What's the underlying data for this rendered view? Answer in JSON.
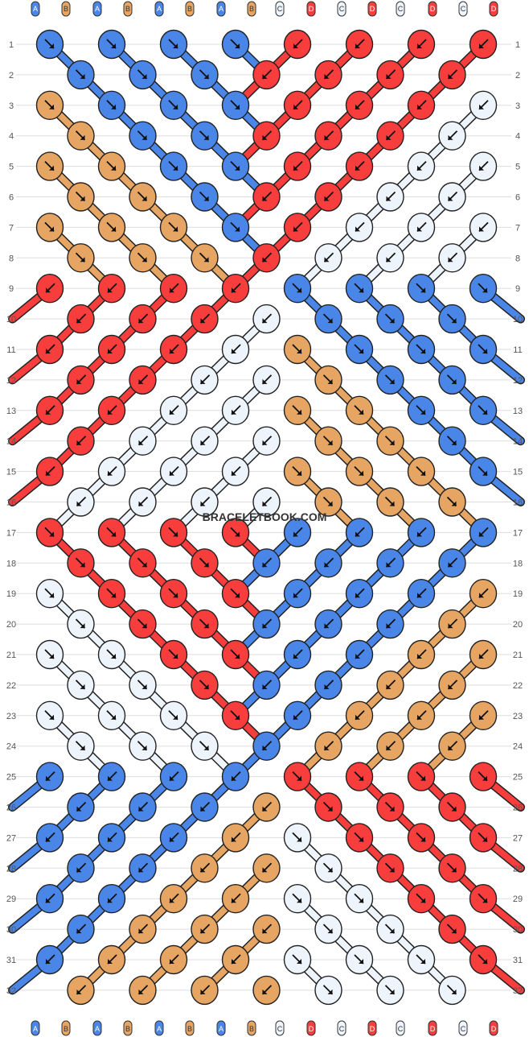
{
  "watermark": "BRACELETBOOK.COM",
  "colors": {
    "A": "#4a86e8",
    "B": "#e6a563",
    "C": "#eef4fb",
    "D": "#f83d3d",
    "outline": "#222222",
    "grid": "#cccccc"
  },
  "string_labels": [
    "A",
    "B",
    "A",
    "B",
    "A",
    "B",
    "A",
    "B",
    "C",
    "D",
    "C",
    "D",
    "C",
    "D",
    "C",
    "D"
  ],
  "row_numbers": [
    "1",
    "2",
    "3",
    "4",
    "5",
    "6",
    "7",
    "8",
    "9",
    "10",
    "11",
    "12",
    "13",
    "14",
    "15",
    "16",
    "17",
    "18",
    "19",
    "20",
    "21",
    "22",
    "23",
    "24",
    "25",
    "26",
    "27",
    "28",
    "29",
    "30",
    "31",
    "32"
  ],
  "knot_rows": [
    [
      [
        "A",
        "dr"
      ],
      [
        "A",
        "dr"
      ],
      [
        "A",
        "dr"
      ],
      [
        "A",
        "dr"
      ],
      [
        "D",
        "dl"
      ],
      [
        "D",
        "dl"
      ],
      [
        "D",
        "dl"
      ],
      [
        "D",
        "dl"
      ]
    ],
    [
      [
        "A",
        "dr"
      ],
      [
        "A",
        "dr"
      ],
      [
        "A",
        "dr"
      ],
      [
        "D",
        "dl"
      ],
      [
        "D",
        "dl"
      ],
      [
        "D",
        "dl"
      ],
      [
        "D",
        "dl"
      ]
    ],
    [
      [
        "B",
        "dr"
      ],
      [
        "A",
        "dr"
      ],
      [
        "A",
        "dr"
      ],
      [
        "A",
        "dr"
      ],
      [
        "D",
        "dl"
      ],
      [
        "D",
        "dl"
      ],
      [
        "D",
        "dl"
      ],
      [
        "C",
        "dl"
      ]
    ],
    [
      [
        "B",
        "dr"
      ],
      [
        "A",
        "dr"
      ],
      [
        "A",
        "dr"
      ],
      [
        "D",
        "dl"
      ],
      [
        "D",
        "dl"
      ],
      [
        "D",
        "dl"
      ],
      [
        "C",
        "dl"
      ]
    ],
    [
      [
        "B",
        "dr"
      ],
      [
        "B",
        "dr"
      ],
      [
        "A",
        "dr"
      ],
      [
        "A",
        "dr"
      ],
      [
        "D",
        "dl"
      ],
      [
        "D",
        "dl"
      ],
      [
        "C",
        "dl"
      ],
      [
        "C",
        "dl"
      ]
    ],
    [
      [
        "B",
        "dr"
      ],
      [
        "B",
        "dr"
      ],
      [
        "A",
        "dr"
      ],
      [
        "D",
        "dl"
      ],
      [
        "D",
        "dl"
      ],
      [
        "C",
        "dl"
      ],
      [
        "C",
        "dl"
      ]
    ],
    [
      [
        "B",
        "dr"
      ],
      [
        "B",
        "dr"
      ],
      [
        "B",
        "dr"
      ],
      [
        "A",
        "dr"
      ],
      [
        "D",
        "dl"
      ],
      [
        "C",
        "dl"
      ],
      [
        "C",
        "dl"
      ],
      [
        "C",
        "dl"
      ]
    ],
    [
      [
        "B",
        "dr"
      ],
      [
        "B",
        "dr"
      ],
      [
        "B",
        "dr"
      ],
      [
        "D",
        "dl"
      ],
      [
        "C",
        "dl"
      ],
      [
        "C",
        "dl"
      ],
      [
        "C",
        "dl"
      ]
    ],
    [
      [
        "D",
        "dl"
      ],
      [
        "D",
        "dl"
      ],
      [
        "D",
        "dl"
      ],
      [
        "D",
        "dl"
      ],
      [
        "A",
        "dr"
      ],
      [
        "A",
        "dr"
      ],
      [
        "A",
        "dr"
      ],
      [
        "A",
        "dr"
      ]
    ],
    [
      [
        "D",
        "dl"
      ],
      [
        "D",
        "dl"
      ],
      [
        "D",
        "dl"
      ],
      [
        "C",
        "dl"
      ],
      [
        "A",
        "dr"
      ],
      [
        "A",
        "dr"
      ],
      [
        "A",
        "dr"
      ]
    ],
    [
      [
        "D",
        "dl"
      ],
      [
        "D",
        "dl"
      ],
      [
        "D",
        "dl"
      ],
      [
        "C",
        "dl"
      ],
      [
        "B",
        "dr"
      ],
      [
        "A",
        "dr"
      ],
      [
        "A",
        "dr"
      ],
      [
        "A",
        "dr"
      ]
    ],
    [
      [
        "D",
        "dl"
      ],
      [
        "D",
        "dl"
      ],
      [
        "C",
        "dl"
      ],
      [
        "C",
        "dl"
      ],
      [
        "B",
        "dr"
      ],
      [
        "A",
        "dr"
      ],
      [
        "A",
        "dr"
      ]
    ],
    [
      [
        "D",
        "dl"
      ],
      [
        "D",
        "dl"
      ],
      [
        "C",
        "dl"
      ],
      [
        "C",
        "dl"
      ],
      [
        "B",
        "dr"
      ],
      [
        "B",
        "dr"
      ],
      [
        "A",
        "dr"
      ],
      [
        "A",
        "dr"
      ]
    ],
    [
      [
        "D",
        "dl"
      ],
      [
        "C",
        "dl"
      ],
      [
        "C",
        "dl"
      ],
      [
        "C",
        "dl"
      ],
      [
        "B",
        "dr"
      ],
      [
        "B",
        "dr"
      ],
      [
        "A",
        "dr"
      ]
    ],
    [
      [
        "D",
        "dl"
      ],
      [
        "C",
        "dl"
      ],
      [
        "C",
        "dl"
      ],
      [
        "C",
        "dl"
      ],
      [
        "B",
        "dr"
      ],
      [
        "B",
        "dr"
      ],
      [
        "B",
        "dr"
      ],
      [
        "A",
        "dr"
      ]
    ],
    [
      [
        "C",
        "dl"
      ],
      [
        "C",
        "dl"
      ],
      [
        "C",
        "dl"
      ],
      [
        "C",
        "dl"
      ],
      [
        "B",
        "dr"
      ],
      [
        "B",
        "dr"
      ],
      [
        "B",
        "dr"
      ]
    ],
    [
      [
        "D",
        "dr"
      ],
      [
        "D",
        "dr"
      ],
      [
        "D",
        "dr"
      ],
      [
        "D",
        "dr"
      ],
      [
        "A",
        "dl"
      ],
      [
        "A",
        "dl"
      ],
      [
        "A",
        "dl"
      ],
      [
        "A",
        "dl"
      ]
    ],
    [
      [
        "D",
        "dr"
      ],
      [
        "D",
        "dr"
      ],
      [
        "D",
        "dr"
      ],
      [
        "A",
        "dl"
      ],
      [
        "A",
        "dl"
      ],
      [
        "A",
        "dl"
      ],
      [
        "A",
        "dl"
      ]
    ],
    [
      [
        "C",
        "dr"
      ],
      [
        "D",
        "dr"
      ],
      [
        "D",
        "dr"
      ],
      [
        "D",
        "dr"
      ],
      [
        "A",
        "dl"
      ],
      [
        "A",
        "dl"
      ],
      [
        "A",
        "dl"
      ],
      [
        "B",
        "dl"
      ]
    ],
    [
      [
        "C",
        "dr"
      ],
      [
        "D",
        "dr"
      ],
      [
        "D",
        "dr"
      ],
      [
        "A",
        "dl"
      ],
      [
        "A",
        "dl"
      ],
      [
        "A",
        "dl"
      ],
      [
        "B",
        "dl"
      ]
    ],
    [
      [
        "C",
        "dr"
      ],
      [
        "C",
        "dr"
      ],
      [
        "D",
        "dr"
      ],
      [
        "D",
        "dr"
      ],
      [
        "A",
        "dl"
      ],
      [
        "A",
        "dl"
      ],
      [
        "B",
        "dl"
      ],
      [
        "B",
        "dl"
      ]
    ],
    [
      [
        "C",
        "dr"
      ],
      [
        "C",
        "dr"
      ],
      [
        "D",
        "dr"
      ],
      [
        "A",
        "dl"
      ],
      [
        "A",
        "dl"
      ],
      [
        "B",
        "dl"
      ],
      [
        "B",
        "dl"
      ]
    ],
    [
      [
        "C",
        "dr"
      ],
      [
        "C",
        "dr"
      ],
      [
        "C",
        "dr"
      ],
      [
        "D",
        "dr"
      ],
      [
        "A",
        "dl"
      ],
      [
        "B",
        "dl"
      ],
      [
        "B",
        "dl"
      ],
      [
        "B",
        "dl"
      ]
    ],
    [
      [
        "C",
        "dr"
      ],
      [
        "C",
        "dr"
      ],
      [
        "C",
        "dr"
      ],
      [
        "A",
        "dl"
      ],
      [
        "B",
        "dl"
      ],
      [
        "B",
        "dl"
      ],
      [
        "B",
        "dl"
      ]
    ],
    [
      [
        "A",
        "dl"
      ],
      [
        "A",
        "dl"
      ],
      [
        "A",
        "dl"
      ],
      [
        "A",
        "dl"
      ],
      [
        "D",
        "dr"
      ],
      [
        "D",
        "dr"
      ],
      [
        "D",
        "dr"
      ],
      [
        "D",
        "dr"
      ]
    ],
    [
      [
        "A",
        "dl"
      ],
      [
        "A",
        "dl"
      ],
      [
        "A",
        "dl"
      ],
      [
        "B",
        "dl"
      ],
      [
        "D",
        "dr"
      ],
      [
        "D",
        "dr"
      ],
      [
        "D",
        "dr"
      ]
    ],
    [
      [
        "A",
        "dl"
      ],
      [
        "A",
        "dl"
      ],
      [
        "A",
        "dl"
      ],
      [
        "B",
        "dl"
      ],
      [
        "C",
        "dr"
      ],
      [
        "D",
        "dr"
      ],
      [
        "D",
        "dr"
      ],
      [
        "D",
        "dr"
      ]
    ],
    [
      [
        "A",
        "dl"
      ],
      [
        "A",
        "dl"
      ],
      [
        "B",
        "dl"
      ],
      [
        "B",
        "dl"
      ],
      [
        "C",
        "dr"
      ],
      [
        "D",
        "dr"
      ],
      [
        "D",
        "dr"
      ]
    ],
    [
      [
        "A",
        "dl"
      ],
      [
        "A",
        "dl"
      ],
      [
        "B",
        "dl"
      ],
      [
        "B",
        "dl"
      ],
      [
        "C",
        "dr"
      ],
      [
        "C",
        "dr"
      ],
      [
        "D",
        "dr"
      ],
      [
        "D",
        "dr"
      ]
    ],
    [
      [
        "A",
        "dl"
      ],
      [
        "B",
        "dl"
      ],
      [
        "B",
        "dl"
      ],
      [
        "B",
        "dl"
      ],
      [
        "C",
        "dr"
      ],
      [
        "C",
        "dr"
      ],
      [
        "D",
        "dr"
      ]
    ],
    [
      [
        "A",
        "dl"
      ],
      [
        "B",
        "dl"
      ],
      [
        "B",
        "dl"
      ],
      [
        "B",
        "dl"
      ],
      [
        "C",
        "dr"
      ],
      [
        "C",
        "dr"
      ],
      [
        "C",
        "dr"
      ],
      [
        "D",
        "dr"
      ]
    ],
    [
      [
        "B",
        "dl"
      ],
      [
        "B",
        "dl"
      ],
      [
        "B",
        "dl"
      ],
      [
        "B",
        "dl"
      ],
      [
        "C",
        "dr"
      ],
      [
        "C",
        "dr"
      ],
      [
        "C",
        "dr"
      ]
    ]
  ]
}
